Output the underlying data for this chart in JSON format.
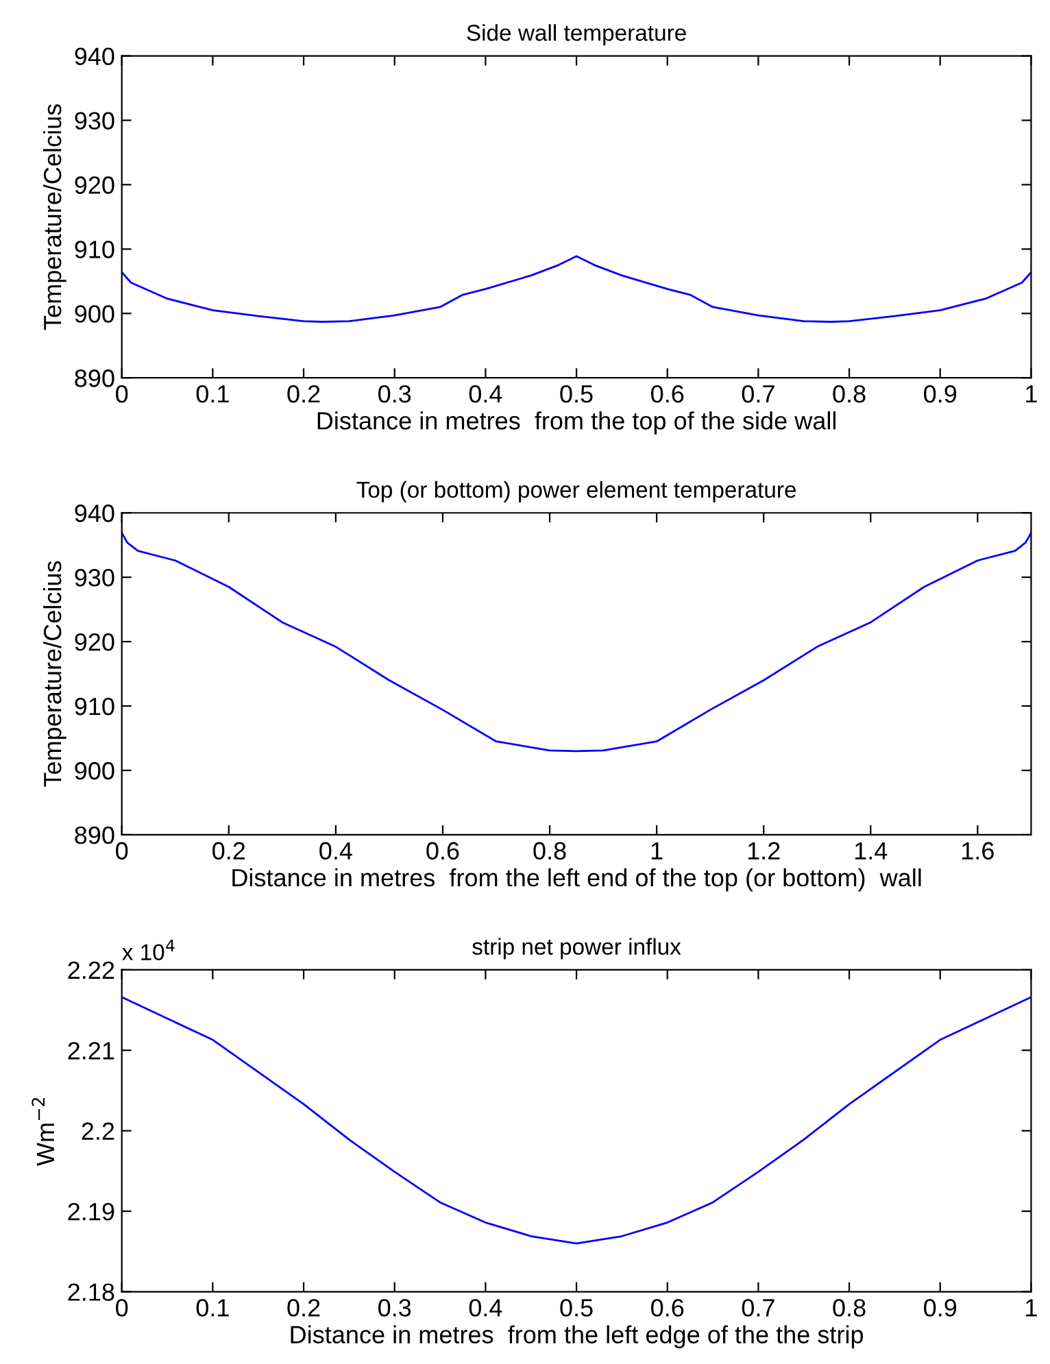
{
  "chart_data": [
    {
      "type": "line",
      "title": "Side wall temperature",
      "xlabel": "Distance in metres  from the top of the side wall",
      "ylabel": "Temperature/Celcius",
      "x": [
        0,
        0.01,
        0.05,
        0.1,
        0.15,
        0.2,
        0.22,
        0.25,
        0.3,
        0.35,
        0.375,
        0.4,
        0.45,
        0.48,
        0.5,
        0.52,
        0.55,
        0.6,
        0.625,
        0.65,
        0.7,
        0.75,
        0.78,
        0.8,
        0.85,
        0.9,
        0.95,
        0.99,
        1
      ],
      "series": [
        {
          "color": "#0000ff",
          "values": [
            906.4,
            904.8,
            902.3,
            900.5,
            899.6,
            898.8,
            898.7,
            898.8,
            899.7,
            901,
            902.9,
            903.8,
            905.9,
            907.5,
            908.9,
            907.5,
            905.9,
            903.8,
            902.9,
            901,
            899.7,
            898.8,
            898.7,
            898.8,
            899.6,
            900.5,
            902.3,
            904.8,
            906.4
          ]
        }
      ],
      "xlim": [
        0,
        1
      ],
      "xticks": [
        0,
        0.1,
        0.2,
        0.3,
        0.4,
        0.5,
        0.6,
        0.7,
        0.8,
        0.9,
        1
      ],
      "ylim": [
        890,
        940
      ],
      "yticks": [
        890,
        900,
        910,
        920,
        930,
        940
      ],
      "grid": false,
      "line_style": "solid",
      "marker": "none"
    },
    {
      "type": "line",
      "title": "Top (or bottom) power element temperature",
      "xlabel": "Distance in metres  from the left end of the top (or bottom)  wall",
      "ylabel": "Temperature/Celcius",
      "x": [
        0,
        0.01,
        0.03,
        0.1,
        0.2,
        0.3,
        0.4,
        0.5,
        0.6,
        0.7,
        0.8,
        0.85,
        0.9,
        1.0,
        1.1,
        1.2,
        1.3,
        1.4,
        1.5,
        1.6,
        1.67,
        1.69,
        1.7
      ],
      "series": [
        {
          "color": "#0000ff",
          "values": [
            936.9,
            935.4,
            934.1,
            932.6,
            928.5,
            923,
            919.2,
            914,
            909.4,
            904.5,
            903.1,
            903,
            903.1,
            904.5,
            909.4,
            914,
            919.2,
            923,
            928.5,
            932.6,
            934.1,
            935.4,
            936.9
          ]
        }
      ],
      "xlim": [
        0,
        1.7
      ],
      "xticks": [
        0,
        0.2,
        0.4,
        0.6,
        0.8,
        1,
        1.2,
        1.4,
        1.6
      ],
      "ylim": [
        890,
        940
      ],
      "yticks": [
        890,
        900,
        910,
        920,
        930,
        940
      ],
      "grid": false,
      "line_style": "solid",
      "marker": "none"
    },
    {
      "type": "line",
      "title": "strip net power influx",
      "xlabel": "Distance in metres  from the left edge of the the strip",
      "ylabel": "Wm$^{−2}$",
      "annotations": [
        "x 10$^{4}$"
      ],
      "x": [
        0,
        0.1,
        0.2,
        0.25,
        0.3,
        0.35,
        0.4,
        0.45,
        0.5,
        0.55,
        0.6,
        0.65,
        0.7,
        0.75,
        0.8,
        0.9,
        1
      ],
      "series": [
        {
          "color": "#0000ff",
          "values": [
            2.2166,
            2.2113,
            2.2033,
            2.1989,
            2.1949,
            2.1911,
            2.1886,
            2.1869,
            2.186,
            2.1869,
            2.1886,
            2.1911,
            2.1949,
            2.1989,
            2.2033,
            2.2113,
            2.2166
          ]
        }
      ],
      "xlim": [
        0,
        1
      ],
      "xticks": [
        0,
        0.1,
        0.2,
        0.3,
        0.4,
        0.5,
        0.6,
        0.7,
        0.8,
        0.9,
        1
      ],
      "ylim": [
        2.18,
        2.22
      ],
      "yticks": [
        2.18,
        2.19,
        2.2,
        2.21,
        2.22
      ],
      "grid": false,
      "line_style": "solid",
      "marker": "none"
    }
  ]
}
